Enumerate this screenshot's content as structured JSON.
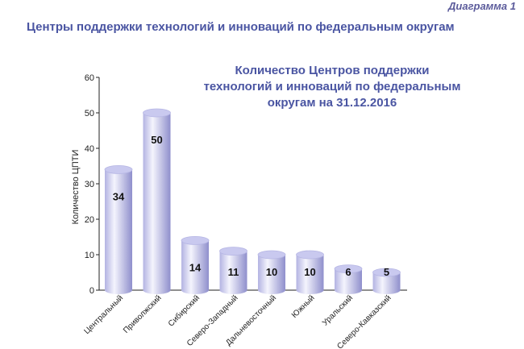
{
  "header": {
    "diagram_label": "Диаграмма 1",
    "title": "Центры поддержки технологий и инноваций по федеральным округам"
  },
  "colors": {
    "title": "#4a55a2",
    "bar_light": "#ececfb",
    "bar_dark": "#9c9cd6",
    "bar_top": "#c9c9ef"
  },
  "chart_data": {
    "type": "bar",
    "title_lines": [
      "Количество Центров поддержки",
      "технологий и инноваций по федеральным",
      "округам на 31.12.2016"
    ],
    "ylabel": "Количество ЦПТИ",
    "xlabel": "",
    "ylim": [
      0,
      60
    ],
    "yticks": [
      0,
      10,
      20,
      30,
      40,
      50,
      60
    ],
    "categories": [
      "Центральный",
      "Приволжский",
      "Сибирский",
      "Северо-Западный",
      "Дальневосточный",
      "Южный",
      "Уральский",
      "Северо-Кавказский"
    ],
    "values": [
      34,
      50,
      14,
      11,
      10,
      10,
      6,
      5
    ],
    "grid": false,
    "legend": "none"
  }
}
